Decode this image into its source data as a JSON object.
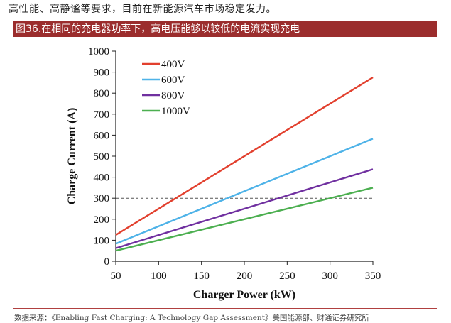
{
  "intro_text": "高性能、高静谧等要求，目前在新能源汽车市场稳定发力。",
  "figure_title": "图36.在相同的充电器功率下，高电压能够以较低的电流实现充电",
  "source_text": "数据来源：《Enabling Fast Charging: A Technology Gap Assessment》美国能源部、财通证券研究所",
  "chart_data": {
    "type": "line",
    "title": "",
    "xlabel": "Charger Power (kW)",
    "ylabel": "Charge Current (A)",
    "xlim": [
      50,
      350
    ],
    "ylim": [
      0,
      1000
    ],
    "xticks": [
      50,
      100,
      150,
      200,
      250,
      300,
      350
    ],
    "yticks": [
      0,
      100,
      200,
      300,
      400,
      500,
      600,
      700,
      800,
      900,
      1000
    ],
    "reference_line": {
      "y": 300,
      "style": "dashed"
    },
    "legend_position": "top-left",
    "series": [
      {
        "name": "400V",
        "color": "#e2402e",
        "x": [
          50,
          350
        ],
        "y": [
          125,
          875
        ]
      },
      {
        "name": "600V",
        "color": "#4fb3e8",
        "x": [
          50,
          350
        ],
        "y": [
          83,
          583
        ]
      },
      {
        "name": "800V",
        "color": "#7030a0",
        "x": [
          50,
          350
        ],
        "y": [
          62,
          438
        ]
      },
      {
        "name": "1000V",
        "color": "#4caf50",
        "x": [
          50,
          350
        ],
        "y": [
          50,
          350
        ]
      }
    ]
  }
}
